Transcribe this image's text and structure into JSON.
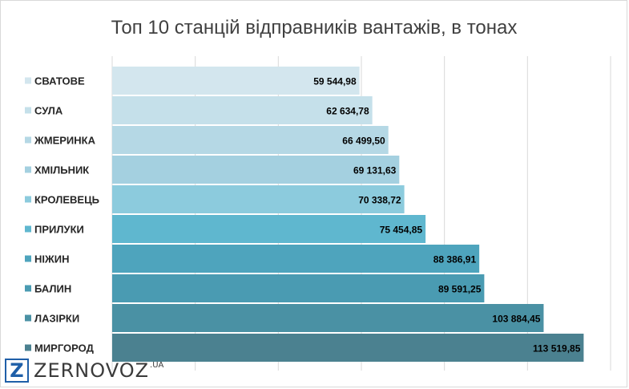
{
  "chart_data": {
    "type": "bar",
    "orientation": "horizontal",
    "title": "Топ 10 станцій відправників вантажів, в тонах",
    "categories": [
      "СВАТОВЕ",
      "СУЛА",
      "ЖМЕРИНКА",
      "ХМІЛЬНИК",
      "КРОЛЕВЕЦЬ",
      "ПРИЛУКИ",
      "НІЖИН",
      "БАЛИН",
      "ЛАЗІРКИ",
      "МИРГОРОД"
    ],
    "values": [
      59544.98,
      62634.78,
      66499.5,
      69131.63,
      70338.72,
      75454.85,
      88386.91,
      89591.25,
      103884.45,
      113519.85
    ],
    "value_labels": [
      "59 544,98",
      "62 634,78",
      "66 499,50",
      "69 131,63",
      "70 338,72",
      "75 454,85",
      "88 386,91",
      "89 591,25",
      "103 884,45",
      "113 519,85"
    ],
    "xlim": [
      0,
      120000
    ],
    "grid": true,
    "legend": "left",
    "colors": [
      "#d3e6ee",
      "#c5e0ea",
      "#b5d8e5",
      "#a4d0e0",
      "#8ccbdd",
      "#5fb7cf",
      "#4ea4bd",
      "#4a9bb2",
      "#4a91a4",
      "#4b8190"
    ]
  },
  "logo": {
    "mark": "Z",
    "word": "ZERNOVOZ",
    "suffix": ".UA"
  }
}
